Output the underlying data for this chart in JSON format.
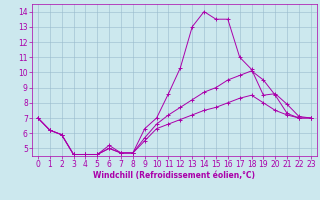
{
  "title": "",
  "xlabel": "Windchill (Refroidissement éolien,°C)",
  "ylabel": "",
  "background_color": "#cce8ee",
  "line_color": "#aa00aa",
  "grid_color": "#99bbcc",
  "xlim": [
    -0.5,
    23.5
  ],
  "ylim": [
    4.5,
    14.5
  ],
  "xticks": [
    0,
    1,
    2,
    3,
    4,
    5,
    6,
    7,
    8,
    9,
    10,
    11,
    12,
    13,
    14,
    15,
    16,
    17,
    18,
    19,
    20,
    21,
    22,
    23
  ],
  "yticks": [
    5,
    6,
    7,
    8,
    9,
    10,
    11,
    12,
    13,
    14
  ],
  "line1_x": [
    0,
    1,
    2,
    3,
    4,
    5,
    6,
    7,
    8,
    9,
    10,
    11,
    12,
    13,
    14,
    15,
    16,
    17,
    18,
    19,
    20,
    21,
    22,
    23
  ],
  "line1_y": [
    7.0,
    6.2,
    5.9,
    4.6,
    4.6,
    4.6,
    5.2,
    4.7,
    4.7,
    6.3,
    7.0,
    8.6,
    10.3,
    13.0,
    14.0,
    13.5,
    13.5,
    11.0,
    10.2,
    8.5,
    8.6,
    7.9,
    7.1,
    7.0
  ],
  "line2_x": [
    0,
    1,
    2,
    3,
    4,
    5,
    6,
    7,
    8,
    9,
    10,
    11,
    12,
    13,
    14,
    15,
    16,
    17,
    18,
    19,
    20,
    21,
    22,
    23
  ],
  "line2_y": [
    7.0,
    6.2,
    5.9,
    4.6,
    4.6,
    4.6,
    5.0,
    4.7,
    4.7,
    5.7,
    6.6,
    7.2,
    7.7,
    8.2,
    8.7,
    9.0,
    9.5,
    9.8,
    10.1,
    9.5,
    8.5,
    7.3,
    7.0,
    7.0
  ],
  "line3_x": [
    0,
    1,
    2,
    3,
    4,
    5,
    6,
    7,
    8,
    9,
    10,
    11,
    12,
    13,
    14,
    15,
    16,
    17,
    18,
    19,
    20,
    21,
    22,
    23
  ],
  "line3_y": [
    7.0,
    6.2,
    5.9,
    4.6,
    4.6,
    4.6,
    5.0,
    4.7,
    4.7,
    5.5,
    6.3,
    6.6,
    6.9,
    7.2,
    7.5,
    7.7,
    8.0,
    8.3,
    8.5,
    8.0,
    7.5,
    7.2,
    7.0,
    7.0
  ],
  "tick_fontsize": 5.5,
  "xlabel_fontsize": 5.5
}
